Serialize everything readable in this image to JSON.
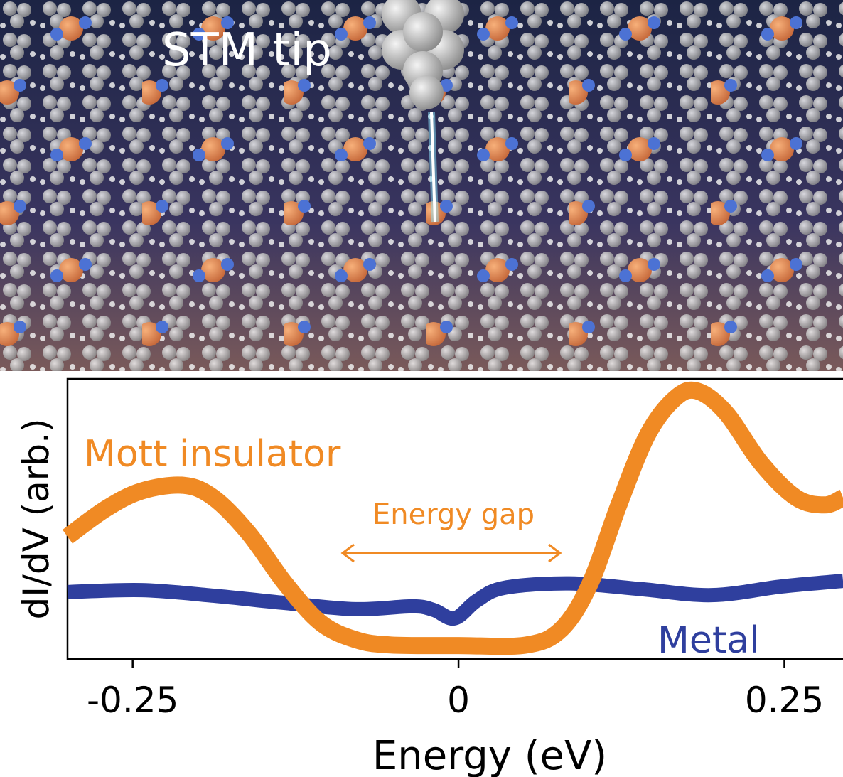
{
  "image_caption": "STM tip",
  "chart_data": {
    "type": "line",
    "ylabel": "dI/dV (arb.)",
    "xlabel": "Energy (eV)",
    "xlim": [
      -0.3,
      0.295
    ],
    "ylim": [
      0,
      1
    ],
    "xticks": [
      -0.25,
      0,
      0.25
    ],
    "annotations": [
      "Energy gap"
    ],
    "series": [
      {
        "name": "Mott insulator",
        "color": "#f08a24",
        "x": [
          -0.3,
          -0.27,
          -0.243,
          -0.211,
          -0.188,
          -0.161,
          -0.133,
          -0.106,
          -0.079,
          -0.052,
          0,
          0.052,
          0.079,
          0.101,
          0.123,
          0.145,
          0.166,
          0.183,
          0.205,
          0.232,
          0.259,
          0.281,
          0.295
        ],
        "values": [
          0.437,
          0.538,
          0.6,
          0.62,
          0.576,
          0.449,
          0.27,
          0.13,
          0.069,
          0.05,
          0.048,
          0.05,
          0.107,
          0.27,
          0.55,
          0.8,
          0.93,
          0.957,
          0.88,
          0.7,
          0.576,
          0.55,
          0.576
        ]
      },
      {
        "name": "Metal",
        "color": "#2f3f9e",
        "x": [
          -0.3,
          -0.243,
          -0.188,
          -0.133,
          -0.079,
          -0.035,
          -0.019,
          -0.003,
          0.014,
          0.035,
          0.085,
          0.139,
          0.194,
          0.248,
          0.295
        ],
        "values": [
          0.239,
          0.246,
          0.226,
          0.2,
          0.178,
          0.188,
          0.175,
          0.145,
          0.208,
          0.254,
          0.27,
          0.25,
          0.228,
          0.259,
          0.279
        ]
      }
    ]
  }
}
